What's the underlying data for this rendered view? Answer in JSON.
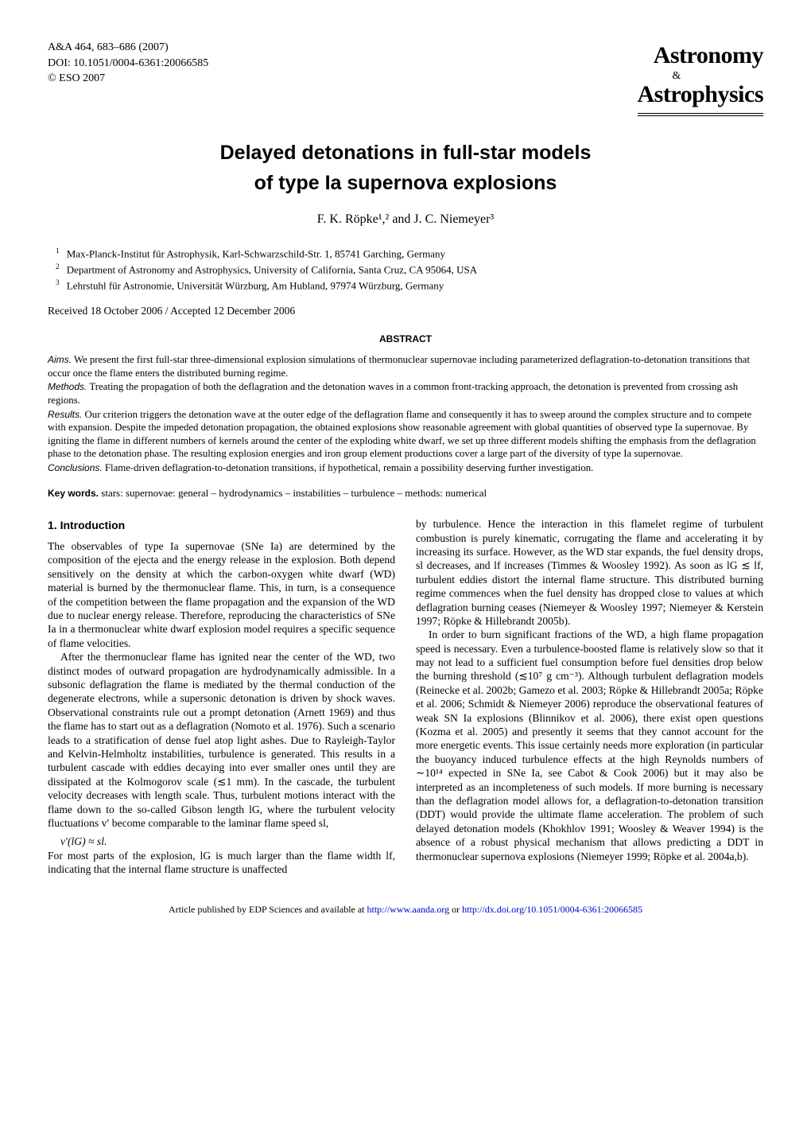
{
  "header": {
    "journal_ref": "A&A 464, 683–686 (2007)",
    "doi": "DOI: 10.1051/0004-6361:20066585",
    "copyright": "© ESO 2007",
    "logo_top": "Astronomy",
    "logo_amp": "&",
    "logo_bottom": "Astrophysics"
  },
  "title": {
    "line1": "Delayed detonations in full-star models",
    "line2": "of type Ia supernova explosions"
  },
  "authors": "F. K. Röpke¹,² and J. C. Niemeyer³",
  "affiliations": [
    {
      "num": "1",
      "text": "Max-Planck-Institut für Astrophysik, Karl-Schwarzschild-Str. 1, 85741 Garching, Germany"
    },
    {
      "num": "2",
      "text": "Department of Astronomy and Astrophysics, University of California, Santa Cruz, CA 95064, USA"
    },
    {
      "num": "3",
      "text": "Lehrstuhl für Astronomie, Universität Würzburg, Am Hubland, 97974 Würzburg, Germany"
    }
  ],
  "dates": "Received 18 October 2006 / Accepted 12 December 2006",
  "abstract": {
    "heading": "ABSTRACT",
    "aims_label": "Aims.",
    "aims": " We present the first full-star three-dimensional explosion simulations of thermonuclear supernovae including parameterized deflagration-to-detonation transitions that occur once the flame enters the distributed burning regime.",
    "methods_label": "Methods.",
    "methods": " Treating the propagation of both the deflagration and the detonation waves in a common front-tracking approach, the detonation is prevented from crossing ash regions.",
    "results_label": "Results.",
    "results": " Our criterion triggers the detonation wave at the outer edge of the deflagration flame and consequently it has to sweep around the complex structure and to compete with expansion. Despite the impeded detonation propagation, the obtained explosions show reasonable agreement with global quantities of observed type Ia supernovae. By igniting the flame in different numbers of kernels around the center of the exploding white dwarf, we set up three different models shifting the emphasis from the deflagration phase to the detonation phase. The resulting explosion energies and iron group element productions cover a large part of the diversity of type Ia supernovae.",
    "conclusions_label": "Conclusions.",
    "conclusions": " Flame-driven deflagration-to-detonation transitions, if hypothetical, remain a possibility deserving further investigation."
  },
  "keywords": {
    "label": "Key words.",
    "text": " stars: supernovae: general – hydrodynamics – instabilities – turbulence – methods: numerical"
  },
  "section1": {
    "heading": "1. Introduction",
    "left_p1": "The observables of type Ia supernovae (SNe Ia) are determined by the composition of the ejecta and the energy release in the explosion. Both depend sensitively on the density at which the carbon-oxygen white dwarf (WD) material is burned by the thermonuclear flame. This, in turn, is a consequence of the competition between the flame propagation and the expansion of the WD due to nuclear energy release. Therefore, reproducing the characteristics of SNe Ia in a thermonuclear white dwarf explosion model requires a specific sequence of flame velocities.",
    "left_p2": "After the thermonuclear flame has ignited near the center of the WD, two distinct modes of outward propagation are hydrodynamically admissible. In a subsonic deflagration the flame is mediated by the thermal conduction of the degenerate electrons, while a supersonic detonation is driven by shock waves. Observational constraints rule out a prompt detonation (Arnett 1969) and thus the flame has to start out as a deflagration (Nomoto et al. 1976). Such a scenario leads to a stratification of dense fuel atop light ashes. Due to Rayleigh-Taylor and Kelvin-Helmholtz instabilities, turbulence is generated. This results in a turbulent cascade with eddies decaying into ever smaller ones until they are dissipated at the Kolmogorov scale (≲1 mm). In the cascade, the turbulent velocity decreases with length scale. Thus, turbulent motions interact with the flame down to the so-called Gibson length lG, where the turbulent velocity fluctuations v′ become comparable to the laminar flame speed sl,",
    "eqn": "v′(lG) ≈ sl.",
    "left_p3": "For most parts of the explosion, lG is much larger than the flame width lf, indicating that the internal flame structure is unaffected",
    "right_p1": "by turbulence. Hence the interaction in this flamelet regime of turbulent combustion is purely kinematic, corrugating the flame and accelerating it by increasing its surface. However, as the WD star expands, the fuel density drops, sl decreases, and lf increases (Timmes & Woosley 1992). As soon as lG ≲ lf, turbulent eddies distort the internal flame structure. This distributed burning regime commences when the fuel density has dropped close to values at which deflagration burning ceases (Niemeyer & Woosley 1997; Niemeyer & Kerstein 1997; Röpke & Hillebrandt 2005b).",
    "right_p2": "In order to burn significant fractions of the WD, a high flame propagation speed is necessary. Even a turbulence-boosted flame is relatively slow so that it may not lead to a sufficient fuel consumption before fuel densities drop below the burning threshold (≲10⁷ g cm⁻³). Although turbulent deflagration models (Reinecke et al. 2002b; Gamezo et al. 2003; Röpke & Hillebrandt 2005a; Röpke et al. 2006; Schmidt & Niemeyer 2006) reproduce the observational features of weak SN Ia explosions (Blinnikov et al. 2006), there exist open questions (Kozma et al. 2005) and presently it seems that they cannot account for the more energetic events. This issue certainly needs more exploration (in particular the buoyancy induced turbulence effects at the high Reynolds numbers of ∼10¹⁴ expected in SNe Ia, see Cabot & Cook 2006) but it may also be interpreted as an incompleteness of such models. If more burning is necessary than the deflagration model allows for, a deflagration-to-detonation transition (DDT) would provide the ultimate flame acceleration. The problem of such delayed detonation models (Khokhlov 1991; Woosley & Weaver 1994) is the absence of a robust physical mechanism that allows predicting a DDT in thermonuclear supernova explosions (Niemeyer 1999; Röpke et al. 2004a,b)."
  },
  "footer": {
    "prefix": "Article published by EDP Sciences and available at ",
    "url1": "http://www.aanda.org",
    "or": " or ",
    "url2": "http://dx.doi.org/10.1051/0004-6361:20066585"
  },
  "colors": {
    "text": "#000000",
    "background": "#ffffff",
    "link": "#0000cc"
  },
  "fonts": {
    "body_family": "Times New Roman",
    "heading_family": "Arial",
    "body_size_pt": 10,
    "title_size_pt": 18,
    "abstract_size_pt": 9.5
  }
}
